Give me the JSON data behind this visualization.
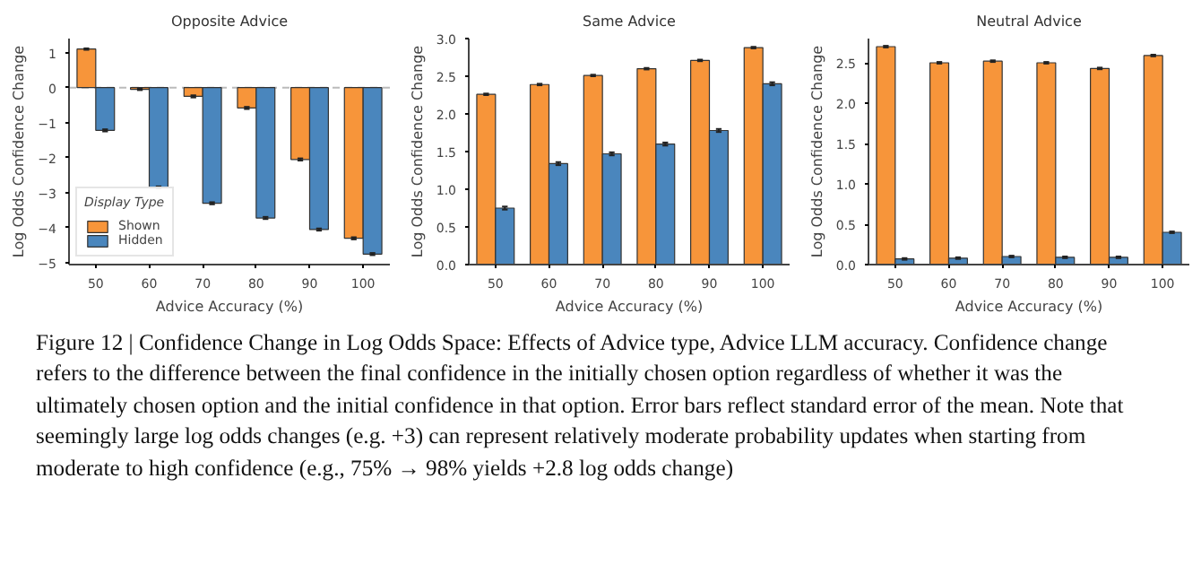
{
  "chart_data": [
    {
      "type": "bar",
      "title": "Opposite Advice",
      "xlabel": "Advice Accuracy (%)",
      "ylabel": "Log Odds Confidence Change",
      "categories": [
        "50",
        "60",
        "70",
        "80",
        "90",
        "100"
      ],
      "ylim": [
        -5.05,
        1.4
      ],
      "yticks": [
        1,
        0,
        -1,
        -2,
        -3,
        -4,
        -5
      ],
      "grid": false,
      "legend": "bottom left",
      "legend_title": "Display Type",
      "series": [
        {
          "name": "Shown",
          "color": "#f7953a",
          "values": [
            1.1,
            -0.05,
            -0.25,
            -0.58,
            -2.05,
            -4.3
          ],
          "errors": [
            0.02,
            0.02,
            0.03,
            0.03,
            0.03,
            0.03
          ]
        },
        {
          "name": "Hidden",
          "color": "#4a86bd",
          "values": [
            -1.22,
            -2.85,
            -3.3,
            -3.72,
            -4.05,
            -4.75
          ],
          "errors": [
            0.03,
            0.03,
            0.03,
            0.03,
            0.03,
            0.03
          ]
        }
      ],
      "ref_lines": [
        {
          "axis": "y",
          "value": 0,
          "color": "#bbbbbb",
          "line_style": "dashed"
        }
      ],
      "annotations": [
        "Figure 12 | Confidence Change in Log Odds Space: Effects of Advice type, Advice LLM accuracy. Confidence change refers to the difference between the final confidence in the initially chosen option regardless of whether it was the ultimately chosen option and the initial confidence in that option. Error bars reflect standard error of the mean. Note that seemingly large log odds changes (e.g. +3) can represent relatively moderate probability updates when starting from moderate to high confidence (e.g., 75% → 98% yields +2.8 log odds change)"
      ]
    },
    {
      "type": "bar",
      "title": "Same Advice",
      "xlabel": "Advice Accuracy (%)",
      "ylabel": "Log Odds Confidence Change",
      "categories": [
        "50",
        "60",
        "70",
        "80",
        "90",
        "100"
      ],
      "ylim": [
        0,
        3.0
      ],
      "yticks": [
        {
          "value": 0,
          "label": "0.0"
        },
        {
          "value": 0.5,
          "label": "0.5"
        },
        {
          "value": 1,
          "label": "1.0"
        },
        {
          "value": 1.5,
          "label": "1.5"
        },
        {
          "value": 2,
          "label": "2.0"
        },
        {
          "value": 2.5,
          "label": "2.5"
        },
        {
          "value": 3,
          "label": "3.0"
        }
      ],
      "grid": false,
      "series": [
        {
          "color": "#f7953a",
          "values": [
            2.26,
            2.39,
            2.51,
            2.6,
            2.71,
            2.88
          ],
          "errors": [
            0.01,
            0.01,
            0.01,
            0.01,
            0.01,
            0.01
          ]
        },
        {
          "color": "#4a86bd",
          "values": [
            0.75,
            1.34,
            1.47,
            1.6,
            1.78,
            2.4
          ],
          "errors": [
            0.02,
            0.02,
            0.02,
            0.02,
            0.02,
            0.02
          ]
        }
      ]
    },
    {
      "type": "bar",
      "title": "Neutral Advice",
      "xlabel": "Advice Accuracy (%)",
      "ylabel": "Log Odds Confidence Change",
      "categories": [
        "50",
        "60",
        "70",
        "80",
        "90",
        "100"
      ],
      "ylim": [
        0,
        2.8
      ],
      "yticks": [
        {
          "value": 0,
          "label": "0.0"
        },
        {
          "value": 0.5,
          "label": "0.5"
        },
        {
          "value": 1,
          "label": "1.0"
        },
        {
          "value": 1.5,
          "label": "1.5"
        },
        {
          "value": 2,
          "label": "2.0"
        },
        {
          "value": 2.5,
          "label": "2.5"
        }
      ],
      "grid": false,
      "series": [
        {
          "color": "#f7953a",
          "values": [
            2.7,
            2.5,
            2.52,
            2.5,
            2.43,
            2.59
          ],
          "errors": [
            0.01,
            0.01,
            0.01,
            0.01,
            0.01,
            0.01
          ]
        },
        {
          "color": "#4a86bd",
          "values": [
            0.07,
            0.08,
            0.1,
            0.09,
            0.09,
            0.4
          ],
          "errors": [
            0.01,
            0.01,
            0.01,
            0.01,
            0.01,
            0.01
          ]
        }
      ]
    }
  ]
}
